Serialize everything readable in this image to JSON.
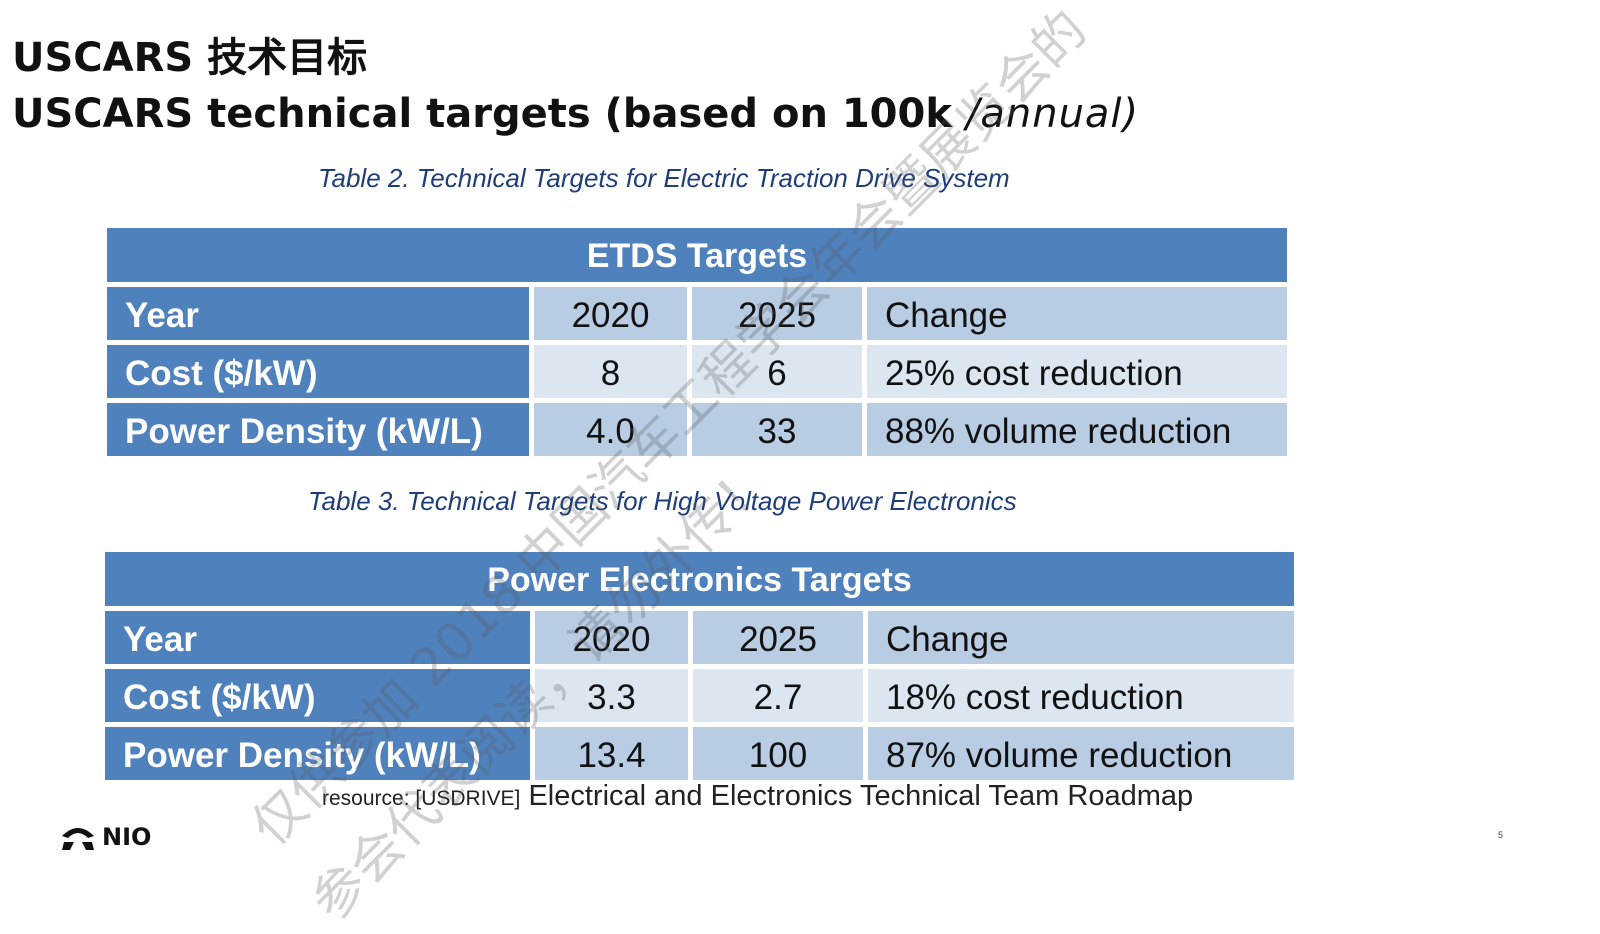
{
  "title": {
    "line1": "USCARS 技术目标",
    "line2_main": "USCARS technical targets (based on 100k ",
    "line2_tail": "/annual)"
  },
  "table2": {
    "caption": "Table 2. Technical Targets for Electric Traction Drive System",
    "header": "ETDS Targets",
    "rows": [
      {
        "label": "Year",
        "c2020": "2020",
        "c2025": "2025",
        "change": "Change"
      },
      {
        "label": "Cost ($/kW)",
        "c2020": "8",
        "c2025": "6",
        "change": "25% cost reduction"
      },
      {
        "label": "Power Density (kW/L)",
        "c2020": "4.0",
        "c2025": "33",
        "change": "88% volume reduction"
      }
    ]
  },
  "table3": {
    "caption": "Table 3. Technical Targets for High Voltage Power Electronics",
    "header": "Power Electronics Targets",
    "rows": [
      {
        "label": "Year",
        "c2020": "2020",
        "c2025": "2025",
        "change": "Change"
      },
      {
        "label": "Cost ($/kW)",
        "c2020": "3.3",
        "c2025": "2.7",
        "change": "18% cost reduction"
      },
      {
        "label": "Power Density (kW/L)",
        "c2020": "13.4",
        "c2025": "100",
        "change": "87% volume reduction"
      }
    ]
  },
  "resource": {
    "prefix": "resource:  [USDRIVE]",
    "text": " Electrical and Electronics Technical Team Roadmap"
  },
  "logo": {
    "text": "NIO"
  },
  "page_number": "5",
  "watermark": {
    "line1": "仅供参加 2018 中国汽车工程学会年会暨展览会的",
    "line2": "参会代表阅读，请勿外传！"
  }
}
